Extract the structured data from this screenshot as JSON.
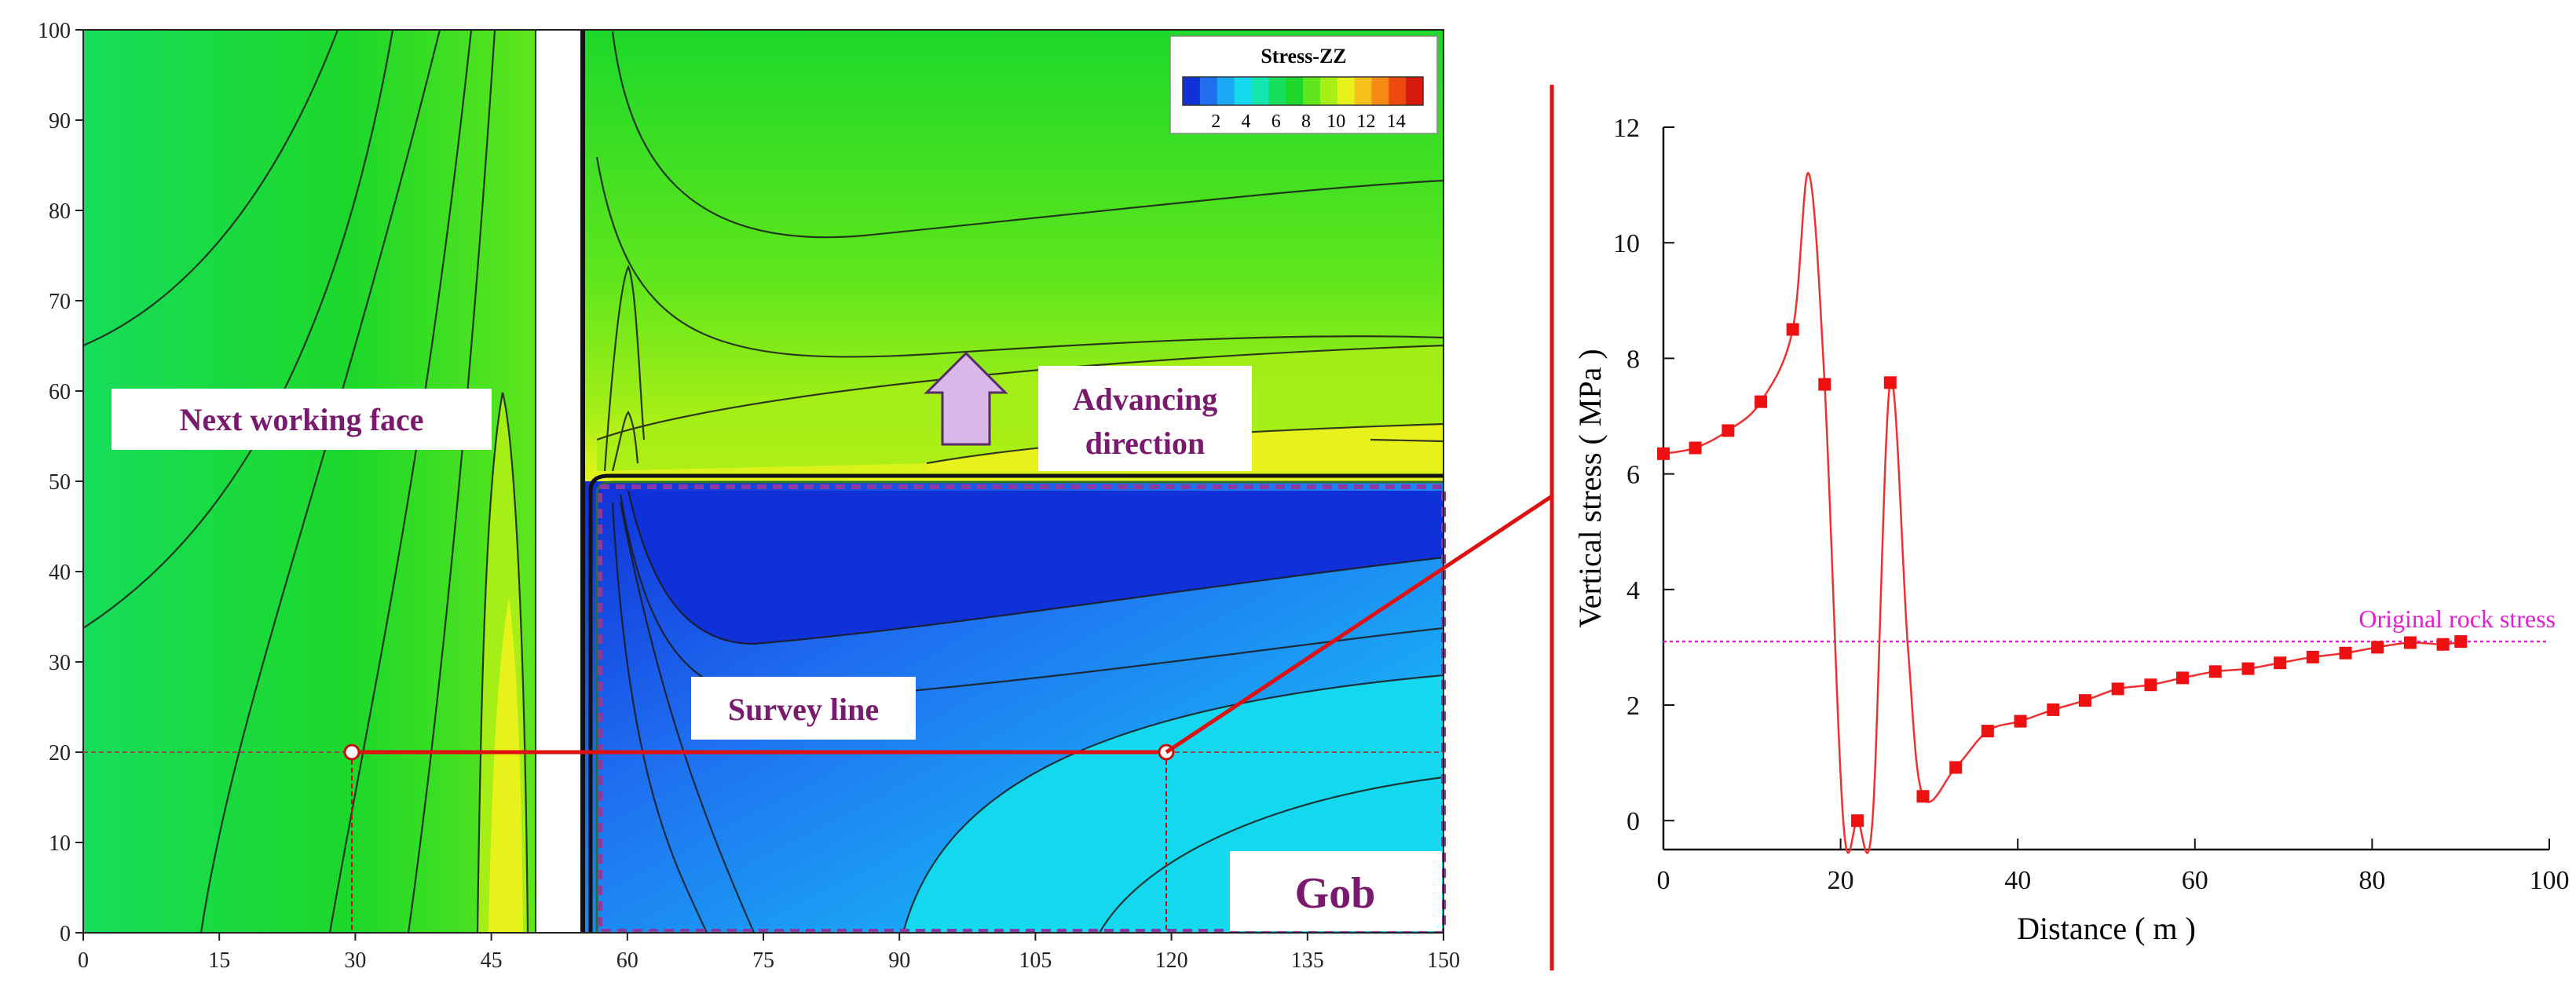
{
  "chart_data": [
    {
      "type": "heatmap",
      "title": "",
      "xlim": [
        0,
        150
      ],
      "ylim": [
        0,
        100
      ],
      "x_ticks": [
        "0",
        "15",
        "30",
        "45",
        "60",
        "75",
        "90",
        "105",
        "120",
        "135",
        "150"
      ],
      "y_ticks": [
        "0",
        "10",
        "20",
        "30",
        "40",
        "50",
        "60",
        "70",
        "80",
        "90",
        "100"
      ],
      "legend": {
        "title": "Stress-ZZ",
        "ticks": [
          "2",
          "4",
          "6",
          "8",
          "10",
          "12",
          "14"
        ],
        "colors": [
          "#1030d8",
          "#1f6ef0",
          "#1aa8f5",
          "#14d8ee",
          "#12e6b0",
          "#16dd5a",
          "#1dd82a",
          "#5fe61c",
          "#a5ef16",
          "#e7f21b",
          "#f5c21b",
          "#f58a15",
          "#ee4a10",
          "#d61a0e"
        ],
        "placement": "top-right"
      },
      "annotations": {
        "next_working_face": "Next working face",
        "advancing_direction_line1": "Advancing",
        "advancing_direction_line2": "direction",
        "survey_line": "Survey line",
        "gob": "Gob"
      },
      "survey_points": [
        {
          "x": 30,
          "y": 20
        },
        {
          "x": 120,
          "y": 20
        }
      ]
    },
    {
      "type": "line",
      "title": "",
      "xlabel": "Distance ( m )",
      "ylabel": "Vertical stress ( MPa )",
      "xlim": [
        0,
        100
      ],
      "ylim": [
        -0.5,
        12
      ],
      "x_ticks": [
        "0",
        "20",
        "40",
        "60",
        "80",
        "100"
      ],
      "y_ticks": [
        "0",
        "2",
        "4",
        "6",
        "8",
        "10",
        "12"
      ],
      "reference_line": {
        "label": "Original rock stress",
        "y": 3.1
      },
      "series": [
        {
          "x": [
            0,
            3.6,
            7.3,
            11.0,
            14.6,
            18.2,
            21.9,
            25.6,
            29.3,
            33.0,
            36.6,
            40.3,
            44.0,
            47.6,
            51.3,
            55.0,
            58.6,
            62.3,
            66.0,
            69.6,
            73.3,
            77.0,
            80.6,
            84.3,
            88.0,
            90.0
          ],
          "values": [
            6.35,
            6.45,
            6.75,
            7.25,
            8.5,
            7.55,
            0.0,
            7.58,
            0.42,
            0.92,
            1.55,
            1.72,
            1.92,
            2.08,
            2.28,
            2.35,
            2.47,
            2.58,
            2.63,
            2.73,
            2.83,
            2.9,
            3.0,
            3.08,
            3.05,
            3.1
          ]
        }
      ]
    }
  ]
}
